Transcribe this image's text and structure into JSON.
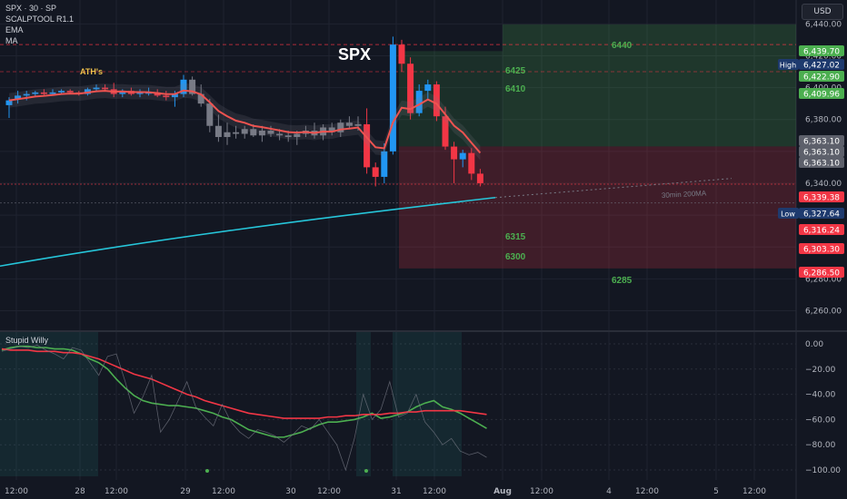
{
  "header": {
    "symbol": "SPX · 30 · SP",
    "indicators": [
      "SCALPTOOL R1.1",
      "EMA",
      "MA"
    ],
    "currency": "USD"
  },
  "chart_data": [
    {
      "type": "candlestick",
      "title": "SPX",
      "interval": "30 min",
      "ylim": [
        6250,
        6455
      ],
      "y_ticks": [
        6260,
        6280,
        6300,
        6320,
        6340,
        6360,
        6380,
        6400,
        6420,
        6440
      ],
      "x_ticks": [
        "12:00",
        "28",
        "12:00",
        "29",
        "12:00",
        "30",
        "12:00",
        "31",
        "12:00",
        "Aug",
        "12:00",
        "4",
        "12:00",
        "5",
        "12:00"
      ],
      "annotations": [
        {
          "text": "ATH's",
          "color": "#f0c14b"
        },
        {
          "text": "6440",
          "color": "#4caf50"
        },
        {
          "text": "6425",
          "color": "#4caf50"
        },
        {
          "text": "6410",
          "color": "#4caf50"
        },
        {
          "text": "6315",
          "color": "#4caf50"
        },
        {
          "text": "6300",
          "color": "#4caf50"
        },
        {
          "text": "6285",
          "color": "#4caf50"
        },
        {
          "text": "30min 200MA",
          "color": "#787b86"
        }
      ],
      "price_labels": [
        {
          "value": 6439.7,
          "text": "6,439.70",
          "color": "#4caf50"
        },
        {
          "value": 6427.02,
          "text": "6,427.02",
          "color": "#1e3a6e",
          "tag": "High"
        },
        {
          "value": 6422.9,
          "text": "6,422.90",
          "color": "#4caf50"
        },
        {
          "value": 6409.96,
          "text": "6,409.96",
          "color": "#4caf50"
        },
        {
          "value": 6363.1,
          "text": "6,363.10",
          "color": "#5d606b"
        },
        {
          "value": 6363.1,
          "text": "6,363.10",
          "color": "#5d606b"
        },
        {
          "value": 6363.1,
          "text": "6,363.10",
          "color": "#5d606b"
        },
        {
          "value": 6339.38,
          "text": "6,339.38",
          "color": "#f23645"
        },
        {
          "value": 6327.64,
          "text": "6,327.64",
          "color": "#1e3a6e",
          "tag": "Low"
        },
        {
          "value": 6316.24,
          "text": "6,316.24",
          "color": "#f23645"
        },
        {
          "value": 6303.3,
          "text": "6,303.30",
          "color": "#f23645"
        },
        {
          "value": 6286.5,
          "text": "6,286.50",
          "color": "#f23645"
        }
      ],
      "zones": [
        {
          "from": 6363.1,
          "to": 6422.9,
          "color": "#4caf50"
        },
        {
          "from": 6286.5,
          "to": 6363.1,
          "color": "#f23645"
        }
      ],
      "candles": [
        {
          "o": 6389,
          "h": 6394,
          "l": 6381,
          "c": 6392
        },
        {
          "o": 6393,
          "h": 6398,
          "l": 6390,
          "c": 6395
        },
        {
          "o": 6395,
          "h": 6398,
          "l": 6392,
          "c": 6396
        },
        {
          "o": 6396,
          "h": 6398,
          "l": 6394,
          "c": 6397
        },
        {
          "o": 6397,
          "h": 6399,
          "l": 6395,
          "c": 6396
        },
        {
          "o": 6396,
          "h": 6399,
          "l": 6395,
          "c": 6397
        },
        {
          "o": 6397,
          "h": 6399,
          "l": 6396,
          "c": 6398
        },
        {
          "o": 6398,
          "h": 6399,
          "l": 6396,
          "c": 6397
        },
        {
          "o": 6397,
          "h": 6398,
          "l": 6395,
          "c": 6396
        },
        {
          "o": 6396,
          "h": 6400,
          "l": 6395,
          "c": 6399
        },
        {
          "o": 6399,
          "h": 6402,
          "l": 6398,
          "c": 6400
        },
        {
          "o": 6400,
          "h": 6402,
          "l": 6398,
          "c": 6399
        },
        {
          "o": 6399,
          "h": 6403,
          "l": 6394,
          "c": 6396
        },
        {
          "o": 6396,
          "h": 6399,
          "l": 6394,
          "c": 6398
        },
        {
          "o": 6398,
          "h": 6400,
          "l": 6395,
          "c": 6396
        },
        {
          "o": 6396,
          "h": 6399,
          "l": 6394,
          "c": 6397
        },
        {
          "o": 6397,
          "h": 6400,
          "l": 6395,
          "c": 6397
        },
        {
          "o": 6397,
          "h": 6399,
          "l": 6394,
          "c": 6395
        },
        {
          "o": 6395,
          "h": 6398,
          "l": 6392,
          "c": 6394
        },
        {
          "o": 6394,
          "h": 6398,
          "l": 6388,
          "c": 6396
        },
        {
          "o": 6396,
          "h": 6408,
          "l": 6394,
          "c": 6405
        },
        {
          "o": 6405,
          "h": 6407,
          "l": 6395,
          "c": 6396
        },
        {
          "o": 6396,
          "h": 6402,
          "l": 6388,
          "c": 6390
        },
        {
          "o": 6390,
          "h": 6393,
          "l": 6372,
          "c": 6376
        },
        {
          "o": 6376,
          "h": 6383,
          "l": 6366,
          "c": 6369
        },
        {
          "o": 6369,
          "h": 6378,
          "l": 6364,
          "c": 6372
        },
        {
          "o": 6372,
          "h": 6376,
          "l": 6368,
          "c": 6371
        },
        {
          "o": 6371,
          "h": 6376,
          "l": 6368,
          "c": 6374
        },
        {
          "o": 6374,
          "h": 6377,
          "l": 6369,
          "c": 6370
        },
        {
          "o": 6370,
          "h": 6376,
          "l": 6366,
          "c": 6373
        },
        {
          "o": 6373,
          "h": 6376,
          "l": 6369,
          "c": 6371
        },
        {
          "o": 6371,
          "h": 6374,
          "l": 6367,
          "c": 6370
        },
        {
          "o": 6370,
          "h": 6373,
          "l": 6366,
          "c": 6369
        },
        {
          "o": 6369,
          "h": 6373,
          "l": 6364,
          "c": 6371
        },
        {
          "o": 6371,
          "h": 6376,
          "l": 6369,
          "c": 6373
        },
        {
          "o": 6373,
          "h": 6378,
          "l": 6368,
          "c": 6370
        },
        {
          "o": 6370,
          "h": 6377,
          "l": 6367,
          "c": 6375
        },
        {
          "o": 6375,
          "h": 6378,
          "l": 6370,
          "c": 6372
        },
        {
          "o": 6372,
          "h": 6380,
          "l": 6369,
          "c": 6378
        },
        {
          "o": 6378,
          "h": 6382,
          "l": 6374,
          "c": 6376
        },
        {
          "o": 6376,
          "h": 6382,
          "l": 6373,
          "c": 6377
        },
        {
          "o": 6377,
          "h": 6387,
          "l": 6346,
          "c": 6350
        },
        {
          "o": 6350,
          "h": 6353,
          "l": 6338,
          "c": 6344
        },
        {
          "o": 6344,
          "h": 6365,
          "l": 6340,
          "c": 6360
        },
        {
          "o": 6360,
          "h": 6432,
          "l": 6358,
          "c": 6427
        },
        {
          "o": 6427,
          "h": 6430,
          "l": 6410,
          "c": 6415
        },
        {
          "o": 6415,
          "h": 6419,
          "l": 6380,
          "c": 6384
        },
        {
          "o": 6384,
          "h": 6402,
          "l": 6382,
          "c": 6398
        },
        {
          "o": 6398,
          "h": 6405,
          "l": 6393,
          "c": 6402
        },
        {
          "o": 6402,
          "h": 6404,
          "l": 6379,
          "c": 6382
        },
        {
          "o": 6382,
          "h": 6388,
          "l": 6361,
          "c": 6363
        },
        {
          "o": 6363,
          "h": 6366,
          "l": 6340,
          "c": 6355
        },
        {
          "o": 6355,
          "h": 6361,
          "l": 6350,
          "c": 6359
        },
        {
          "o": 6359,
          "h": 6362,
          "l": 6342,
          "c": 6346
        },
        {
          "o": 6346,
          "h": 6349,
          "l": 6338,
          "c": 6340
        }
      ]
    },
    {
      "type": "line",
      "title": "Stupid Willy",
      "ylim": [
        -105,
        5
      ],
      "y_ticks": [
        0.0,
        -20.0,
        -40.0,
        -60.0,
        -80.0,
        -100.0
      ],
      "y_tick_labels": [
        "0.00",
        "−20.00",
        "−40.00",
        "−60.00",
        "−80.00",
        "−100.00"
      ],
      "series": [
        {
          "color": "#4caf50",
          "values": [
            -5,
            -3,
            -2,
            -2,
            -3,
            -3,
            -4,
            -4,
            -5,
            -8,
            -12,
            -15,
            -20,
            -28,
            -35,
            -41,
            -45,
            -47,
            -48,
            -49,
            -49,
            -50,
            -51,
            -53,
            -55,
            -58,
            -60,
            -64,
            -68,
            -70,
            -72,
            -74,
            -74,
            -72,
            -70,
            -67,
            -64,
            -62,
            -62,
            -61,
            -60,
            -58,
            -55,
            -59,
            -58,
            -56,
            -54,
            -50,
            -47,
            -45,
            -50,
            -52,
            -55,
            -59,
            -63,
            -67
          ]
        },
        {
          "color": "#f23645",
          "values": [
            -4,
            -5,
            -5,
            -5,
            -6,
            -6,
            -6,
            -7,
            -7,
            -8,
            -10,
            -12,
            -15,
            -18,
            -21,
            -24,
            -26,
            -28,
            -31,
            -34,
            -37,
            -40,
            -42,
            -45,
            -47,
            -49,
            -51,
            -53,
            -55,
            -56,
            -57,
            -58,
            -59,
            -59,
            -59,
            -59,
            -59,
            -58,
            -58,
            -57,
            -57,
            -56,
            -56,
            -56,
            -55,
            -55,
            -54,
            -54,
            -53,
            -53,
            -53,
            -53,
            -53,
            -54,
            -55,
            -56
          ]
        },
        {
          "color": "#787b86",
          "values": [
            -6,
            -4,
            -2,
            -3,
            -1,
            -5,
            -8,
            -12,
            -3,
            -5,
            -15,
            -25,
            -10,
            -8,
            -30,
            -55,
            -42,
            -25,
            -70,
            -60,
            -45,
            -30,
            -50,
            -58,
            -65,
            -48,
            -62,
            -70,
            -75,
            -68,
            -70,
            -73,
            -78,
            -72,
            -65,
            -68,
            -60,
            -70,
            -80,
            -100,
            -75,
            -40,
            -60,
            -52,
            -30,
            -58,
            -55,
            -40,
            -62,
            -70,
            -80,
            -75,
            -85,
            -88,
            -86,
            -90
          ]
        }
      ]
    }
  ]
}
